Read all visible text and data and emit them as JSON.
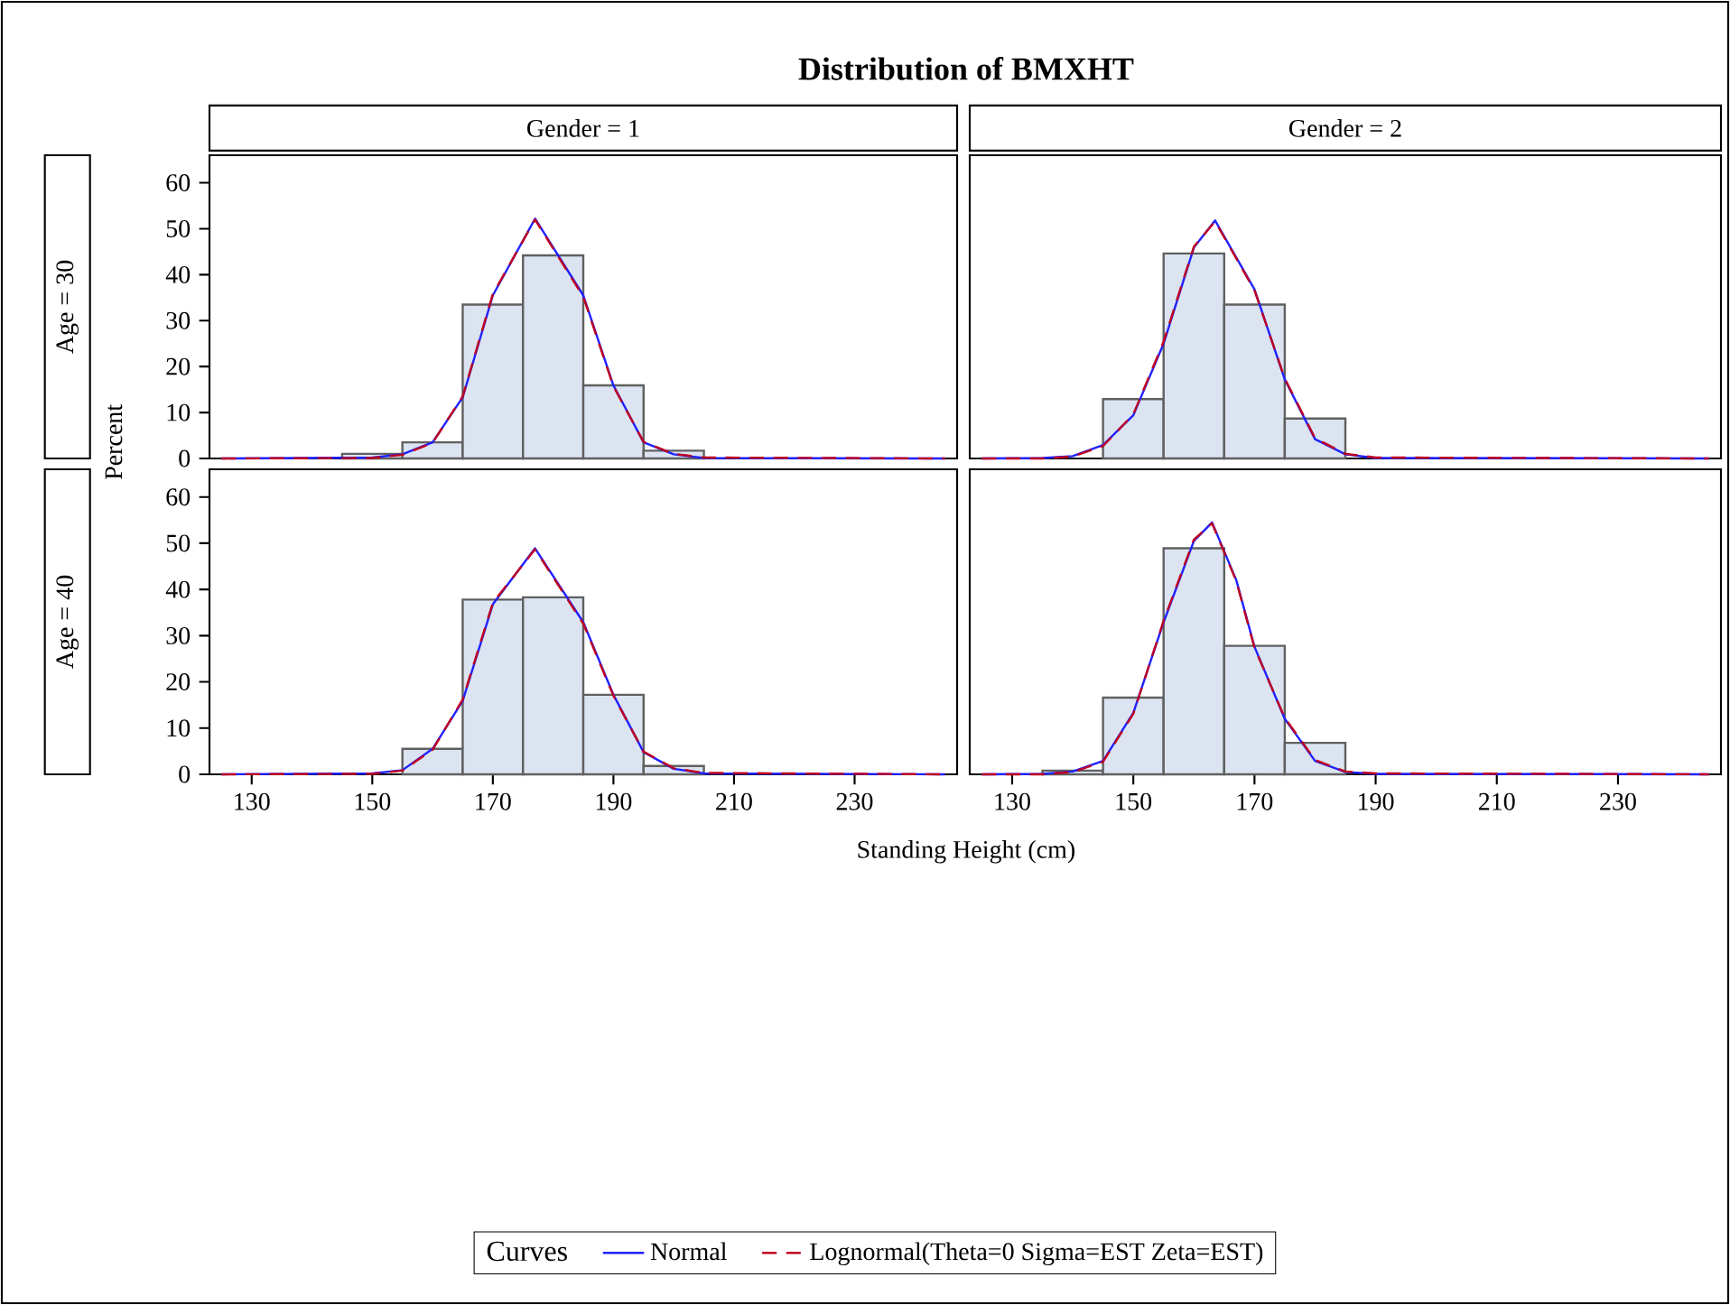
{
  "chart_data": [
    {
      "type": "histogram",
      "title": "Distribution of BMXHT",
      "subtitle": "Gender = 1",
      "annotations": [
        "Age = 30"
      ],
      "ylabel": "Percent",
      "legend": "bottom",
      "legend_title": "Curves",
      "tick_labels": "y",
      "color": "#dbe4f0",
      "bins": [
        145,
        155,
        165,
        175,
        185,
        195,
        205
      ],
      "values": [
        1.0,
        3.5,
        33.5,
        44.2,
        15.9,
        1.7
      ],
      "series": [
        {
          "name": "Normal",
          "type": "line",
          "line_style": "solid",
          "color": "#2020ff",
          "x": [
            125,
            150,
            155,
            160,
            165,
            170,
            177,
            185,
            190,
            195,
            200,
            205,
            245
          ],
          "values": [
            0,
            0.2,
            0.9,
            3.5,
            13.3,
            35.5,
            52.2,
            35.5,
            15.9,
            3.5,
            0.9,
            0.1,
            0
          ]
        },
        {
          "name": "Lognormal(Theta=0 Sigma=EST Zeta=EST)",
          "type": "line",
          "line_style": "dashed",
          "color": "#c00020",
          "x": [
            125,
            150,
            155,
            160,
            165,
            170,
            177,
            185,
            190,
            195,
            200,
            205,
            245
          ],
          "values": [
            0,
            0.1,
            0.8,
            3.4,
            13.5,
            35.8,
            52.0,
            35.2,
            15.7,
            3.6,
            1.0,
            0.2,
            0
          ]
        }
      ],
      "xlim": [
        123,
        247
      ],
      "ylim": [
        0,
        66
      ],
      "xticks": [
        130,
        150,
        170,
        190,
        210,
        230
      ],
      "yticks": [
        0,
        10,
        20,
        30,
        40,
        50,
        60
      ]
    },
    {
      "type": "histogram",
      "subtitle": "Gender = 2",
      "tick_labels": false,
      "color": "#dbe4f0",
      "bins": [
        145,
        155,
        165,
        175,
        185
      ],
      "values": [
        12.9,
        44.6,
        33.5,
        8.7
      ],
      "series": [
        {
          "type": "line",
          "line_style": "solid",
          "color": "#2020ff",
          "x": [
            125,
            135,
            140,
            145,
            150,
            155,
            160,
            163.5,
            170,
            175,
            180,
            185,
            190,
            245
          ],
          "values": [
            0,
            0.1,
            0.5,
            2.9,
            9.4,
            25,
            45.9,
            51.8,
            36.8,
            17.2,
            4.2,
            0.9,
            0.1,
            0
          ]
        },
        {
          "type": "line",
          "line_style": "dashed",
          "color": "#c00020",
          "x": [
            125,
            135,
            140,
            145,
            150,
            155,
            160,
            163.5,
            170,
            175,
            180,
            185,
            190,
            245
          ],
          "values": [
            0,
            0,
            0.4,
            2.7,
            9.6,
            25.4,
            46.1,
            51.6,
            36.6,
            17.4,
            4.4,
            1.0,
            0.2,
            0
          ]
        }
      ],
      "xlim": [
        123,
        247
      ],
      "ylim": [
        0,
        66
      ],
      "xticks": [
        130,
        150,
        170,
        190,
        210,
        230
      ],
      "yticks": [
        0,
        10,
        20,
        30,
        40,
        50,
        60
      ]
    },
    {
      "type": "histogram",
      "annotations": [
        "Age = 40"
      ],
      "xlabel": "Standing Height (cm)",
      "color": "#dbe4f0",
      "bins": [
        155,
        165,
        175,
        185,
        195,
        205
      ],
      "values": [
        5.5,
        37.8,
        38.3,
        17.2,
        1.8
      ],
      "series": [
        {
          "type": "line",
          "line_style": "solid",
          "color": "#2020ff",
          "x": [
            125,
            150,
            155,
            160,
            165,
            170,
            177,
            185,
            190,
            195,
            200,
            205,
            245
          ],
          "values": [
            0,
            0.2,
            0.9,
            5.5,
            15.9,
            36.8,
            48.9,
            32.9,
            17.2,
            4.8,
            1.2,
            0.2,
            0
          ]
        },
        {
          "type": "line",
          "line_style": "dashed",
          "color": "#c00020",
          "x": [
            125,
            150,
            155,
            160,
            165,
            170,
            177,
            185,
            190,
            195,
            200,
            205,
            245
          ],
          "values": [
            0,
            0.1,
            0.8,
            5.3,
            16.2,
            37.1,
            48.7,
            32.6,
            17.0,
            4.9,
            1.3,
            0.3,
            0
          ]
        }
      ],
      "xlim": [
        123,
        247
      ],
      "ylim": [
        0,
        66
      ],
      "xticks": [
        130,
        150,
        170,
        190,
        210,
        230
      ],
      "yticks": [
        0,
        10,
        20,
        30,
        40,
        50,
        60
      ]
    },
    {
      "type": "histogram",
      "tick_labels": "x",
      "color": "#dbe4f0",
      "bins": [
        135,
        145,
        155,
        165,
        175,
        185
      ],
      "values": [
        0.8,
        16.6,
        48.9,
        27.8,
        6.8
      ],
      "series": [
        {
          "type": "line",
          "line_style": "solid",
          "color": "#2020ff",
          "x": [
            125,
            135,
            140,
            145,
            150,
            155,
            160,
            163,
            167,
            170,
            175,
            180,
            185,
            190,
            245
          ],
          "values": [
            0,
            0.1,
            0.6,
            2.9,
            13.3,
            32.9,
            50.5,
            54.5,
            42,
            27.6,
            12,
            2.9,
            0.5,
            0.1,
            0
          ]
        },
        {
          "type": "line",
          "line_style": "dashed",
          "color": "#c00020",
          "x": [
            125,
            135,
            140,
            145,
            150,
            155,
            160,
            163,
            167,
            170,
            175,
            180,
            185,
            190,
            245
          ],
          "values": [
            0,
            0,
            0.5,
            2.7,
            13.1,
            33.2,
            50.8,
            54.3,
            41.8,
            27.4,
            12.2,
            3.1,
            0.6,
            0.2,
            0
          ]
        }
      ],
      "xlim": [
        123,
        247
      ],
      "ylim": [
        0,
        66
      ],
      "xticks": [
        130,
        150,
        170,
        190,
        210,
        230
      ],
      "yticks": [
        0,
        10,
        20,
        30,
        40,
        50,
        60
      ]
    }
  ]
}
